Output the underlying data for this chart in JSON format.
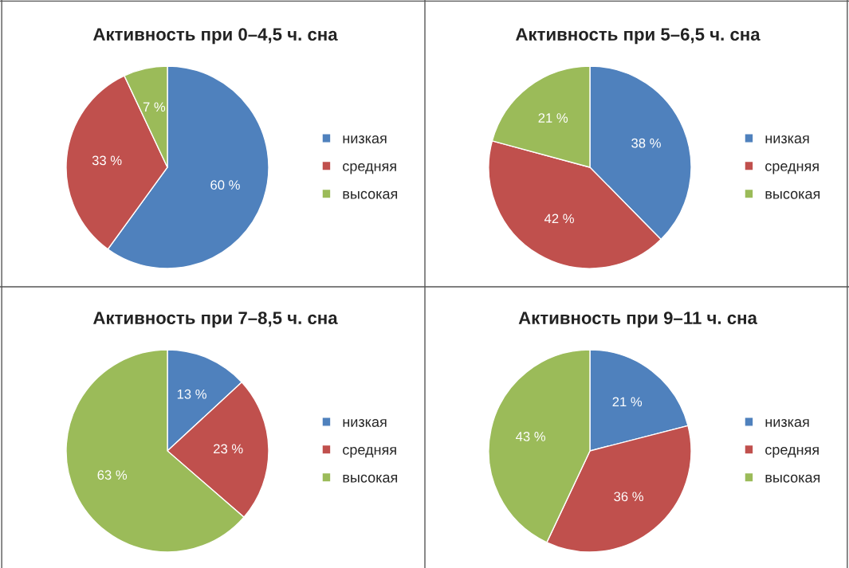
{
  "chart_data": [
    {
      "type": "pie",
      "title": "Активность при 0–4,5 ч. сна",
      "categories": [
        "низкая",
        "средняя",
        "высокая"
      ],
      "values": [
        60,
        33,
        7
      ],
      "value_labels": [
        "60 %",
        "33 %",
        "7 %"
      ],
      "colors": [
        "#4f81bd",
        "#c0504d",
        "#9bbb59"
      ],
      "legend": "right"
    },
    {
      "type": "pie",
      "title": "Активность при 5–6,5 ч. сна",
      "categories": [
        "низкая",
        "средняя",
        "высокая"
      ],
      "values": [
        38,
        42,
        21
      ],
      "value_labels": [
        "38 %",
        "42 %",
        "21 %"
      ],
      "colors": [
        "#4f81bd",
        "#c0504d",
        "#9bbb59"
      ],
      "legend": "right"
    },
    {
      "type": "pie",
      "title": "Активность при 7–8,5 ч. сна",
      "categories": [
        "низкая",
        "средняя",
        "высокая"
      ],
      "values": [
        13,
        23,
        63
      ],
      "value_labels": [
        "13 %",
        "23 %",
        "63 %"
      ],
      "colors": [
        "#4f81bd",
        "#c0504d",
        "#9bbb59"
      ],
      "legend": "right"
    },
    {
      "type": "pie",
      "title": "Активность при 9–11 ч. сна",
      "categories": [
        "низкая",
        "средняя",
        "высокая"
      ],
      "values": [
        21,
        36,
        43
      ],
      "value_labels": [
        "21 %",
        "36 %",
        "43 %"
      ],
      "colors": [
        "#4f81bd",
        "#c0504d",
        "#9bbb59"
      ],
      "legend": "right"
    }
  ]
}
